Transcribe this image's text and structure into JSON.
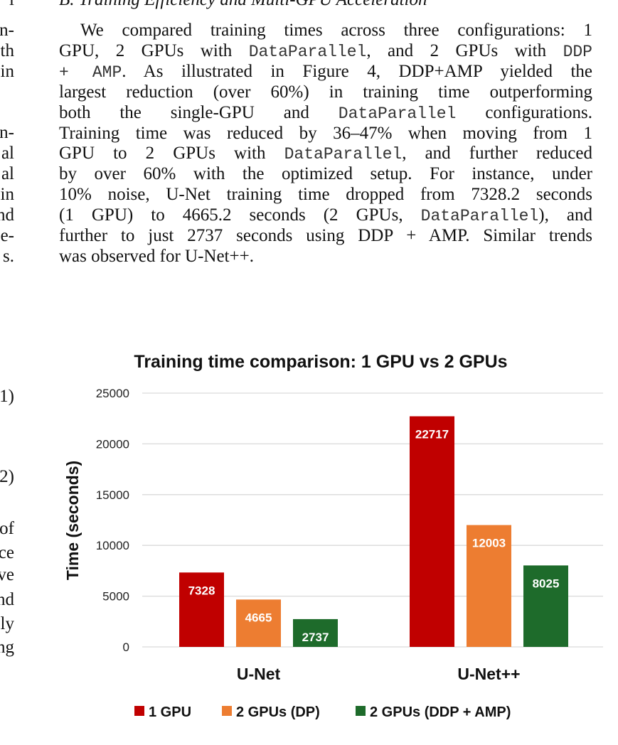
{
  "left_column_fragments": [
    {
      "text": "l",
      "top": -14
    },
    {
      "text": "n-",
      "top": 29
    },
    {
      "text": "th",
      "top": 58
    },
    {
      "text": "in",
      "top": 87
    },
    {
      "text": "n-",
      "top": 173
    },
    {
      "text": "al",
      "top": 202
    },
    {
      "text": "al",
      "top": 231
    },
    {
      "text": "in",
      "top": 260
    },
    {
      "text": "nd",
      "top": 289
    },
    {
      "text": "e-",
      "top": 318
    },
    {
      "text": "s.",
      "top": 347
    },
    {
      "text": "1)",
      "top": 544
    },
    {
      "text": "2)",
      "top": 657
    },
    {
      "text": "of",
      "top": 730
    },
    {
      "text": "ce",
      "top": 764
    },
    {
      "text": "ve",
      "top": 795
    },
    {
      "text": "nd",
      "top": 830
    },
    {
      "text": "ly",
      "top": 864
    },
    {
      "text": "ng",
      "top": 897
    }
  ],
  "section_heading": "B.  Training Efficiency and Multi-GPU Acceleration",
  "paragraph": [
    [
      {
        "t": "We compared training times across three configurations: 1"
      }
    ],
    [
      {
        "t": "GPU, 2 GPUs with "
      },
      {
        "t": "DataParallel",
        "mono": true
      },
      {
        "t": ", and 2 GPUs with "
      },
      {
        "t": "DDP",
        "mono": true
      }
    ],
    [
      {
        "t": "+ AMP",
        "mono": true
      },
      {
        "t": ". As illustrated in Figure 4, DDP+AMP yielded the"
      }
    ],
    [
      {
        "t": "largest reduction (over 60%) in training time outperforming"
      }
    ],
    [
      {
        "t": "both the single-GPU and "
      },
      {
        "t": "DataParallel",
        "mono": true
      },
      {
        "t": " configurations."
      }
    ],
    [
      {
        "t": "Training time was reduced by 36–47% when moving from 1"
      }
    ],
    [
      {
        "t": "GPU to 2 GPUs with "
      },
      {
        "t": "DataParallel",
        "mono": true
      },
      {
        "t": ", and further reduced"
      }
    ],
    [
      {
        "t": "by over 60% with the optimized setup. For instance, under"
      }
    ],
    [
      {
        "t": "10% noise, U-Net training time dropped from 7328.2 seconds"
      }
    ],
    [
      {
        "t": "(1 GPU) to 4665.2 seconds (2 GPUs, "
      },
      {
        "t": "DataParallel",
        "mono": true
      },
      {
        "t": "), and"
      }
    ],
    [
      {
        "t": "further to just 2737 seconds using DDP + AMP. Similar trends"
      }
    ],
    [
      {
        "t": "was observed for U-Net++."
      }
    ]
  ],
  "chart_data": {
    "type": "bar",
    "title": "Training time comparison: 1 GPU vs 2 GPUs",
    "xlabel": "",
    "ylabel": "Time (seconds)",
    "ylim": [
      0,
      25000
    ],
    "yticks": [
      "0",
      "5000",
      "10000",
      "15000",
      "20000",
      "25000"
    ],
    "grid": true,
    "legend_position": "bottom",
    "categories": [
      "U-Net",
      "U-Net++"
    ],
    "series": [
      {
        "name": "1 GPU",
        "values": [
          7328,
          22717
        ],
        "labels": [
          "7328",
          "22717"
        ],
        "color": "#c00000"
      },
      {
        "name": "2 GPUs (DP)",
        "values": [
          4665,
          12003
        ],
        "labels": [
          "4665",
          "12003"
        ],
        "color": "#ed7d31"
      },
      {
        "name": "2 GPUs (DDP + AMP)",
        "values": [
          2737,
          8025
        ],
        "labels": [
          "2737",
          "8025"
        ],
        "color": "#1e6b2b"
      }
    ]
  }
}
